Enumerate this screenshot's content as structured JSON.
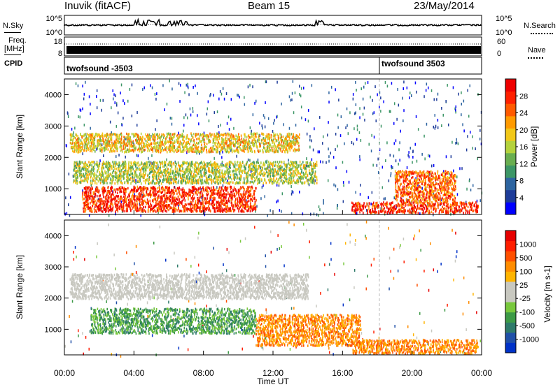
{
  "header": {
    "station": "Inuvik (fitACF)",
    "beam": "Beam 15",
    "date": "23/May/2014"
  },
  "left_labels": {
    "nsky": "N.Sky",
    "freq_line1": "Freq.",
    "freq_line2": "[MHz]",
    "cpid": "CPID"
  },
  "right_labels": {
    "nsearch": "N.Search",
    "nave": "Nave"
  },
  "cpid_segments": [
    "twofsound -3503",
    "twofsound 3503"
  ],
  "chart_data": [
    {
      "type": "line",
      "panel": "noise",
      "y_left_ticks": [
        "10^5",
        "10^0"
      ],
      "y_right_ticks": [
        "10^5",
        "10^0"
      ],
      "series": [
        {
          "name": "N.Sky",
          "style": "solid"
        },
        {
          "name": "N.Search",
          "style": "dotted"
        }
      ]
    },
    {
      "type": "line",
      "panel": "frequency",
      "y_left_ticks": [
        "18",
        "8"
      ],
      "y_right_ticks": [
        "60",
        "0"
      ],
      "series": [
        {
          "name": "Nave",
          "style": "dotted"
        }
      ]
    },
    {
      "type": "heatmap",
      "panel": "power",
      "ylabel": "Slant Range [km]",
      "y_ticks": [
        1000,
        2000,
        3000,
        4000
      ],
      "ylim": [
        180,
        4500
      ],
      "xlim_hours": [
        0,
        24
      ],
      "colorbar": {
        "label": "Power [dB]",
        "ticks": [
          "28",
          "24",
          "20",
          "16",
          "12",
          "8",
          "4"
        ],
        "colors": [
          "#0000ff",
          "#1e3c99",
          "#2d64a0",
          "#3c9666",
          "#69ae50",
          "#b4d23c",
          "#f2c818",
          "#ff9a00",
          "#ff5a00",
          "#ff2000",
          "#ee0000"
        ]
      },
      "bands": [
        {
          "t0": 0.3,
          "t1": 13.5,
          "r0": 2200,
          "r1": 2800,
          "level": 6
        },
        {
          "t0": 0.5,
          "t1": 14.5,
          "r0": 1200,
          "r1": 1900,
          "level": 5
        },
        {
          "t0": 1.0,
          "t1": 11.0,
          "r0": 300,
          "r1": 1100,
          "level": 9
        },
        {
          "t0": 16.5,
          "t1": 23.8,
          "r0": 250,
          "r1": 600,
          "level": 9
        },
        {
          "t0": 19.0,
          "t1": 22.5,
          "r0": 600,
          "r1": 1600,
          "level": 8
        }
      ]
    },
    {
      "type": "heatmap",
      "panel": "velocity",
      "xlabel": "Time UT",
      "ylabel": "Slant Range [km]",
      "x_ticks": [
        "00:00",
        "04:00",
        "08:00",
        "12:00",
        "16:00",
        "20:00",
        "00:00"
      ],
      "y_ticks": [
        1000,
        2000,
        3000,
        4000
      ],
      "ylim": [
        180,
        4500
      ],
      "xlim_hours": [
        0,
        24
      ],
      "colorbar": {
        "label": "Velocity [m s-1]",
        "ticks": [
          "1000",
          "500",
          "100",
          "25",
          "-25",
          "-100",
          "-500",
          "-1000"
        ],
        "colors": [
          "#0032c8",
          "#2050a8",
          "#2e7a6a",
          "#3c9a46",
          "#78c83c",
          "#c8c8c0",
          "#c8c8c0",
          "#ffb400",
          "#ff8c00",
          "#ff5000",
          "#ff1e00",
          "#e60000"
        ]
      },
      "bands": [
        {
          "t0": 0.3,
          "t1": 14.0,
          "r0": 2000,
          "r1": 2800,
          "level": "grey"
        },
        {
          "t0": 1.5,
          "t1": 11.0,
          "r0": 900,
          "r1": 1700,
          "level": "green"
        },
        {
          "t0": 11.0,
          "t1": 17.0,
          "r0": 500,
          "r1": 1500,
          "level": "orange"
        },
        {
          "t0": 16.5,
          "t1": 23.8,
          "r0": 250,
          "r1": 700,
          "level": "orange"
        }
      ]
    }
  ]
}
